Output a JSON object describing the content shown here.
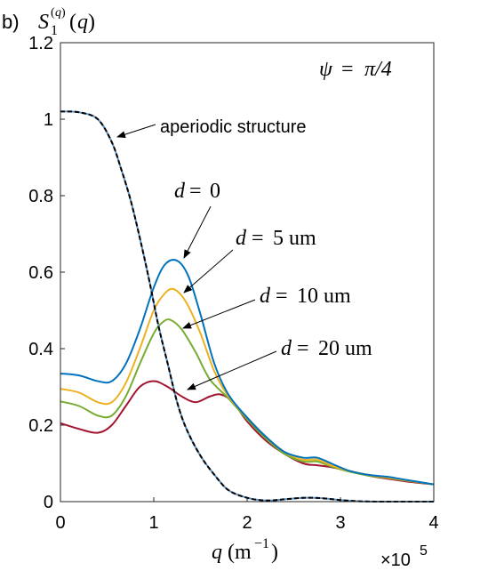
{
  "panel_label": "b)",
  "chart_data": {
    "type": "line",
    "title": "",
    "ylabel": "S_1^{(q)}(q)",
    "xlabel": "q (m^{-1})",
    "x_multiplier": "×10",
    "x_multiplier_exp": "5",
    "xlim": [
      0,
      400000
    ],
    "ylim": [
      0,
      1.2
    ],
    "x_ticks": [
      0,
      100000,
      200000,
      300000,
      400000
    ],
    "x_tick_labels": [
      "0",
      "1",
      "2",
      "3",
      "4"
    ],
    "y_ticks": [
      0,
      0.2,
      0.4,
      0.6,
      0.8,
      1.0,
      1.2
    ],
    "y_tick_labels": [
      "0",
      "0.2",
      "0.4",
      "0.6",
      "0.8",
      "1",
      "1.2"
    ],
    "grid": false,
    "legend": "none",
    "corner_annotation": {
      "lhs": "ψ",
      "eq": "=",
      "rhs": "π/4"
    },
    "series": [
      {
        "name": "aperiodic structure",
        "color": "#000000",
        "style": "dashed",
        "x": [
          0,
          20000,
          40000,
          55000,
          65000,
          75000,
          85000,
          95000,
          105000,
          115000,
          125000,
          135000,
          150000,
          165000,
          180000,
          200000,
          220000,
          240000,
          260000,
          280000,
          300000,
          320000,
          340000,
          360000,
          380000,
          400000
        ],
        "y": [
          1.02,
          1.018,
          1.0,
          0.94,
          0.87,
          0.79,
          0.69,
          0.58,
          0.46,
          0.36,
          0.26,
          0.19,
          0.12,
          0.07,
          0.03,
          0.01,
          0.003,
          0.006,
          0.01,
          0.009,
          0.004,
          0.001,
          0.0,
          0.0,
          0.0,
          0.0
        ]
      },
      {
        "name": "d = 0",
        "color": "#0072BD",
        "style": "solid",
        "x": [
          0,
          20000,
          40000,
          55000,
          70000,
          85000,
          100000,
          112000,
          125000,
          137000,
          150000,
          165000,
          180000,
          200000,
          220000,
          240000,
          260000,
          275000,
          290000,
          310000,
          330000,
          350000,
          370000,
          400000
        ],
        "y": [
          0.335,
          0.33,
          0.315,
          0.315,
          0.36,
          0.45,
          0.56,
          0.62,
          0.63,
          0.59,
          0.49,
          0.36,
          0.28,
          0.22,
          0.17,
          0.13,
          0.115,
          0.115,
          0.1,
          0.08,
          0.07,
          0.065,
          0.057,
          0.045
        ]
      },
      {
        "name": "d = 5 um",
        "color": "#EDB120",
        "style": "solid",
        "x": [
          0,
          20000,
          40000,
          55000,
          70000,
          85000,
          100000,
          112000,
          122000,
          135000,
          150000,
          165000,
          180000,
          200000,
          220000,
          240000,
          260000,
          275000,
          290000,
          310000,
          330000,
          350000,
          370000,
          400000
        ],
        "y": [
          0.295,
          0.285,
          0.26,
          0.26,
          0.31,
          0.4,
          0.5,
          0.545,
          0.555,
          0.52,
          0.44,
          0.34,
          0.275,
          0.22,
          0.17,
          0.13,
          0.11,
          0.11,
          0.095,
          0.08,
          0.07,
          0.063,
          0.056,
          0.045
        ]
      },
      {
        "name": "d = 10 um",
        "color": "#77AC30",
        "style": "solid",
        "x": [
          0,
          20000,
          40000,
          55000,
          70000,
          85000,
          100000,
          110000,
          118000,
          130000,
          145000,
          160000,
          180000,
          200000,
          220000,
          240000,
          260000,
          275000,
          290000,
          310000,
          330000,
          350000,
          370000,
          400000
        ],
        "y": [
          0.262,
          0.25,
          0.225,
          0.225,
          0.275,
          0.36,
          0.44,
          0.47,
          0.475,
          0.45,
          0.39,
          0.32,
          0.27,
          0.215,
          0.165,
          0.125,
          0.105,
          0.105,
          0.092,
          0.078,
          0.068,
          0.062,
          0.055,
          0.045
        ]
      },
      {
        "name": "d = 20 um",
        "color": "#A2142F",
        "style": "solid",
        "x": [
          0,
          20000,
          40000,
          55000,
          70000,
          85000,
          100000,
          115000,
          130000,
          145000,
          160000,
          172000,
          185000,
          200000,
          220000,
          240000,
          260000,
          275000,
          290000,
          310000,
          330000,
          350000,
          370000,
          400000
        ],
        "y": [
          0.205,
          0.19,
          0.18,
          0.2,
          0.25,
          0.3,
          0.315,
          0.3,
          0.275,
          0.26,
          0.275,
          0.28,
          0.26,
          0.21,
          0.16,
          0.125,
          0.1,
          0.095,
          0.09,
          0.08,
          0.068,
          0.06,
          0.053,
          0.045
        ]
      }
    ]
  },
  "annotations": [
    {
      "lhs": "",
      "rhs": "aperiodic structure",
      "points_to": "aperiodic structure"
    },
    {
      "lhs": "d",
      "rhs": "0",
      "points_to": "d = 0"
    },
    {
      "lhs": "d",
      "rhs": "5 um",
      "points_to": "d = 5 um"
    },
    {
      "lhs": "d",
      "rhs": "10 um",
      "points_to": "d = 10 um"
    },
    {
      "lhs": "d",
      "rhs": "20 um",
      "points_to": "d = 20 um"
    }
  ]
}
